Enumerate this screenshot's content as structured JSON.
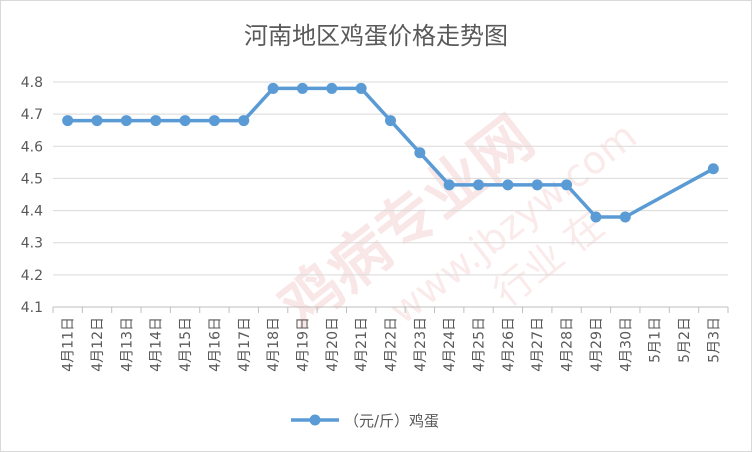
{
  "chart_data": {
    "type": "line",
    "title": "河南地区鸡蛋价格走势图",
    "categories": [
      "4月11日",
      "4月12日",
      "4月13日",
      "4月14日",
      "4月15日",
      "4月16日",
      "4月17日",
      "4月18日",
      "4月19日",
      "4月20日",
      "4月21日",
      "4月22日",
      "4月23日",
      "4月24日",
      "4月25日",
      "4月26日",
      "4月27日",
      "4月28日",
      "4月29日",
      "4月30日",
      "5月1日",
      "5月2日",
      "5月3日"
    ],
    "series": [
      {
        "name": "（元/斤）鸡蛋",
        "values": [
          4.68,
          4.68,
          4.68,
          4.68,
          4.68,
          4.68,
          4.68,
          4.78,
          4.78,
          4.78,
          4.78,
          4.68,
          4.58,
          4.48,
          4.48,
          4.48,
          4.48,
          4.48,
          4.38,
          4.38,
          null,
          null,
          4.53
        ],
        "color": "#5b9bd5"
      }
    ],
    "ylim": [
      4.1,
      4.8
    ],
    "yticks": [
      "4.1",
      "4.2",
      "4.3",
      "4.4",
      "4.5",
      "4.6",
      "4.7",
      "4.8"
    ],
    "grid": true,
    "legend_position": "bottom",
    "gaps": "connect"
  },
  "watermark": {
    "text_cn": "鸡病专业网",
    "text_url": "www.jbzyw.com",
    "text_slogan": "行业 在"
  }
}
